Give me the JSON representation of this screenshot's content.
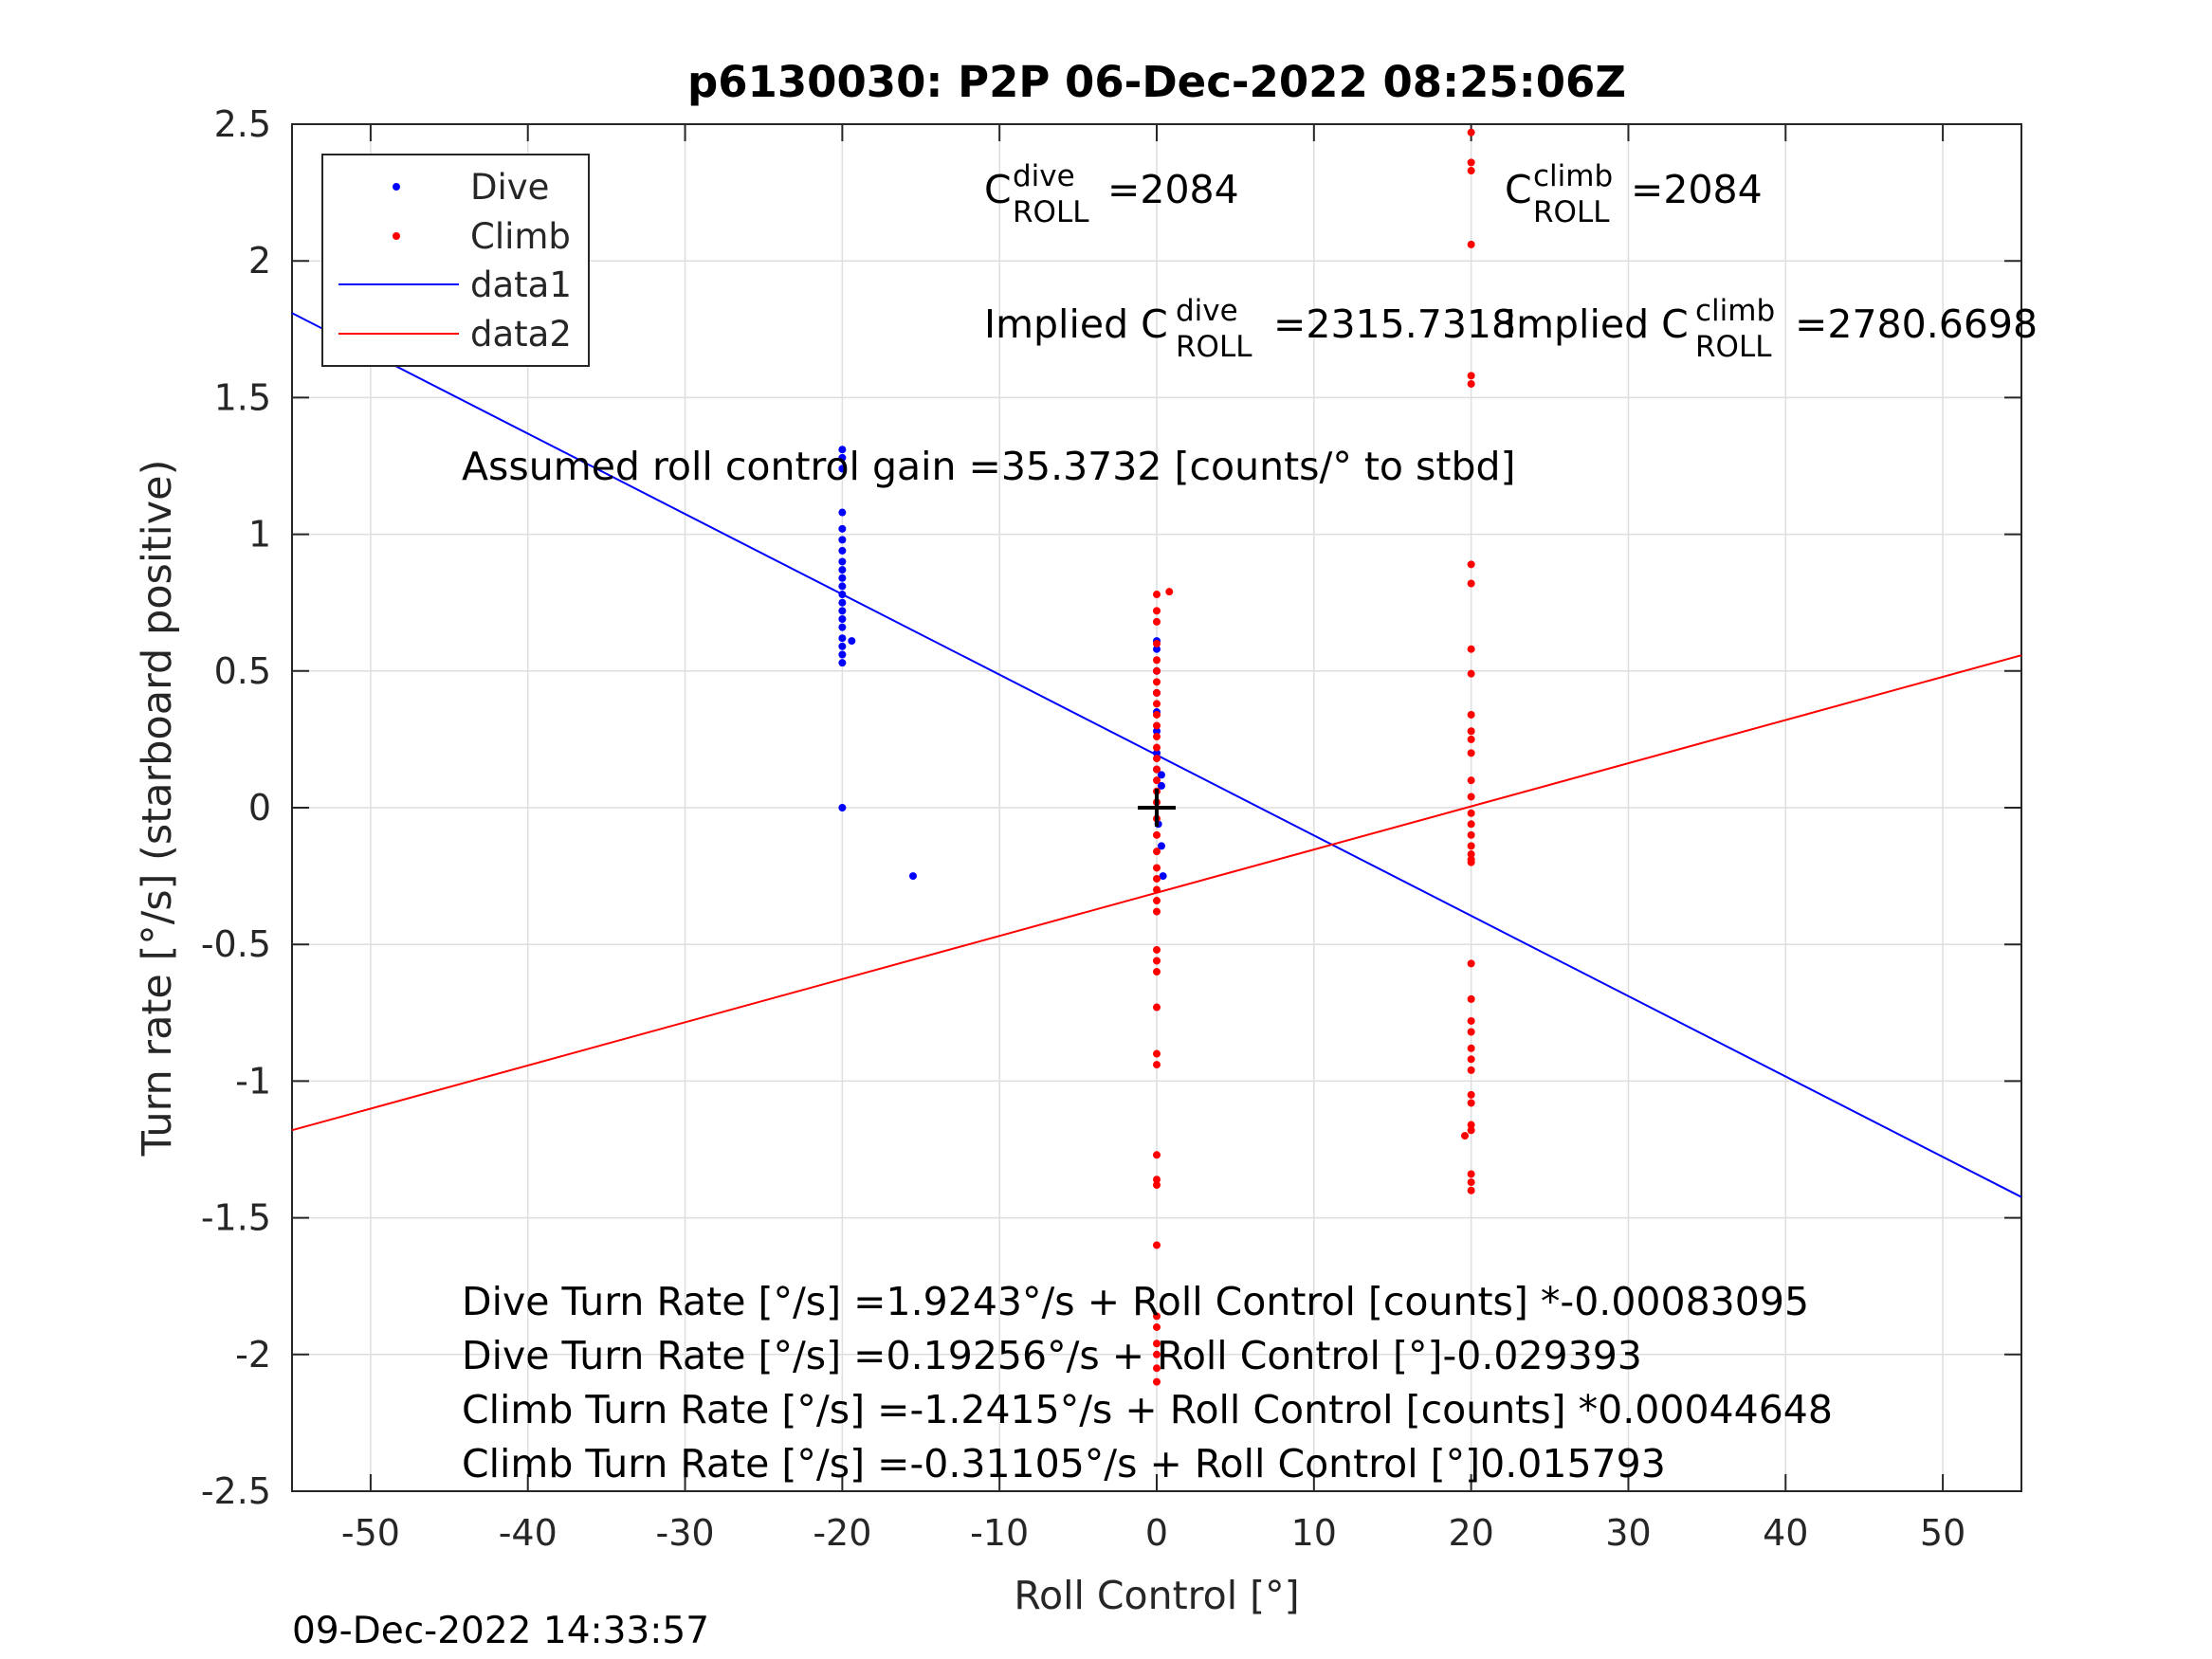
{
  "chart_data": {
    "type": "scatter",
    "title": "p6130030: P2P 06-Dec-2022 08:25:06Z",
    "xlabel": "Roll Control [°]",
    "ylabel": "Turn rate [°/s] (starboard positive)",
    "xlim": [
      -55,
      55
    ],
    "ylim": [
      -2.5,
      2.5
    ],
    "x_ticks": [
      -50,
      -40,
      -30,
      -20,
      -10,
      0,
      10,
      20,
      30,
      40,
      50
    ],
    "x_tick_labels": [
      "-50",
      "-40",
      "-30",
      "-20",
      "-10",
      "0",
      "10",
      "20",
      "30",
      "40",
      "50"
    ],
    "y_ticks": [
      2.5,
      2,
      1.5,
      1,
      0.5,
      0,
      -0.5,
      -1,
      -1.5,
      -2,
      -2.5
    ],
    "y_tick_labels": [
      "2.5",
      "2",
      "1.5",
      "1",
      "0.5",
      "0",
      "-0.5",
      "-1",
      "-1.5",
      "-2",
      "-2.5"
    ],
    "grid": true,
    "legend_position": "top-left",
    "series": [
      {
        "name": "Dive",
        "kind": "points",
        "color": "#0000ff",
        "points": [
          [
            -20,
            1.31
          ],
          [
            -20,
            1.28
          ],
          [
            -20,
            1.24
          ],
          [
            -20,
            1.08
          ],
          [
            -20,
            1.02
          ],
          [
            -20,
            0.98
          ],
          [
            -20,
            0.94
          ],
          [
            -20,
            0.9
          ],
          [
            -20,
            0.87
          ],
          [
            -20,
            0.84
          ],
          [
            -20,
            0.81
          ],
          [
            -20,
            0.78
          ],
          [
            -20,
            0.75
          ],
          [
            -20,
            0.72
          ],
          [
            -20,
            0.69
          ],
          [
            -20,
            0.66
          ],
          [
            -20,
            0.62
          ],
          [
            -20,
            0.59
          ],
          [
            -20,
            0.56
          ],
          [
            -20,
            0.53
          ],
          [
            -19.4,
            0.61
          ],
          [
            -20,
            0.0
          ],
          [
            -15.5,
            -0.25
          ],
          [
            0,
            0.61
          ],
          [
            0,
            0.58
          ],
          [
            0,
            0.5
          ],
          [
            0,
            0.42
          ],
          [
            0,
            0.35
          ],
          [
            0,
            0.28
          ],
          [
            0,
            0.2
          ],
          [
            0,
            0.14
          ],
          [
            0.3,
            0.12
          ],
          [
            0.3,
            0.08
          ],
          [
            0.1,
            -0.06
          ],
          [
            0.3,
            -0.14
          ],
          [
            0.4,
            -0.25
          ]
        ]
      },
      {
        "name": "Climb",
        "kind": "points",
        "color": "#ff0000",
        "points": [
          [
            0,
            0.78
          ],
          [
            0.8,
            0.79
          ],
          [
            0,
            0.72
          ],
          [
            0,
            0.68
          ],
          [
            0,
            0.6
          ],
          [
            0,
            0.54
          ],
          [
            0,
            0.5
          ],
          [
            0,
            0.46
          ],
          [
            0,
            0.42
          ],
          [
            0,
            0.38
          ],
          [
            0,
            0.34
          ],
          [
            0,
            0.3
          ],
          [
            0,
            0.26
          ],
          [
            0,
            0.22
          ],
          [
            0,
            0.18
          ],
          [
            0,
            0.14
          ],
          [
            0,
            0.1
          ],
          [
            0,
            0.06
          ],
          [
            0,
            0.02
          ],
          [
            0,
            -0.04
          ],
          [
            0,
            -0.1
          ],
          [
            0,
            -0.16
          ],
          [
            0,
            -0.22
          ],
          [
            0,
            -0.26
          ],
          [
            0,
            -0.3
          ],
          [
            0,
            -0.34
          ],
          [
            0,
            -0.38
          ],
          [
            0,
            -0.52
          ],
          [
            0,
            -0.56
          ],
          [
            0,
            -0.6
          ],
          [
            0,
            -0.73
          ],
          [
            0,
            -0.9
          ],
          [
            0,
            -0.94
          ],
          [
            0,
            -1.27
          ],
          [
            0,
            -1.36
          ],
          [
            0,
            -1.38
          ],
          [
            0,
            -1.6
          ],
          [
            0,
            -1.86
          ],
          [
            0,
            -1.9
          ],
          [
            0,
            -1.96
          ],
          [
            0,
            -2.0
          ],
          [
            0,
            -2.05
          ],
          [
            0,
            -2.1
          ],
          [
            20,
            2.47
          ],
          [
            20,
            2.36
          ],
          [
            20,
            2.33
          ],
          [
            20,
            2.06
          ],
          [
            20,
            1.58
          ],
          [
            20,
            1.55
          ],
          [
            20,
            0.89
          ],
          [
            20,
            0.82
          ],
          [
            20,
            0.58
          ],
          [
            20,
            0.49
          ],
          [
            20,
            0.34
          ],
          [
            20,
            0.28
          ],
          [
            20,
            0.25
          ],
          [
            20,
            0.2
          ],
          [
            20,
            0.1
          ],
          [
            20,
            0.04
          ],
          [
            20,
            -0.02
          ],
          [
            20,
            -0.06
          ],
          [
            20,
            -0.1
          ],
          [
            20,
            -0.14
          ],
          [
            20,
            -0.17
          ],
          [
            20,
            -0.19
          ],
          [
            20,
            -0.2
          ],
          [
            20,
            -0.57
          ],
          [
            20,
            -0.7
          ],
          [
            20,
            -0.78
          ],
          [
            20,
            -0.82
          ],
          [
            20,
            -0.88
          ],
          [
            20,
            -0.92
          ],
          [
            20,
            -0.96
          ],
          [
            20,
            -1.05
          ],
          [
            20,
            -1.08
          ],
          [
            20,
            -1.16
          ],
          [
            20,
            -1.18
          ],
          [
            19.6,
            -1.2
          ],
          [
            20,
            -1.34
          ],
          [
            20,
            -1.37
          ],
          [
            20,
            -1.4
          ]
        ]
      },
      {
        "name": "data1",
        "kind": "line",
        "color": "#0000ff",
        "intercept": 0.19256,
        "slope": -0.029393
      },
      {
        "name": "data2",
        "kind": "line",
        "color": "#ff0000",
        "intercept": -0.31105,
        "slope": 0.015793
      }
    ],
    "center_marker": {
      "x": 0,
      "y": 0,
      "color": "#000000"
    },
    "annotations": {
      "c_dive_base": "C",
      "c_dive_sup": "dive",
      "c_dive_sub": "ROLL",
      "c_dive_value": "=2084",
      "c_climb_base": "C",
      "c_climb_sup": "climb",
      "c_climb_sub": "ROLL",
      "c_climb_value": "=2084",
      "implied_dive_prefix": "Implied C",
      "implied_dive_sup": "dive",
      "implied_dive_sub": "ROLL",
      "implied_dive_value": "=2315.7318",
      "implied_climb_prefix": "Implied C",
      "implied_climb_sup": "climb",
      "implied_climb_sub": "ROLL",
      "implied_climb_value": "=2780.6698",
      "gain": "Assumed roll control gain =35.3732 [counts/° to stbd]",
      "eq1": "Dive Turn Rate [°/s] =1.9243°/s + Roll Control [counts] *-0.00083095",
      "eq2": "Dive Turn Rate [°/s] =0.19256°/s + Roll Control [°]-0.029393",
      "eq3": "Climb Turn Rate [°/s] =-1.2415°/s + Roll Control [counts] *0.00044648",
      "eq4": "Climb Turn Rate [°/s] =-0.31105°/s + Roll Control [°]0.015793"
    },
    "timestamp": "09-Dec-2022 14:33:57"
  }
}
